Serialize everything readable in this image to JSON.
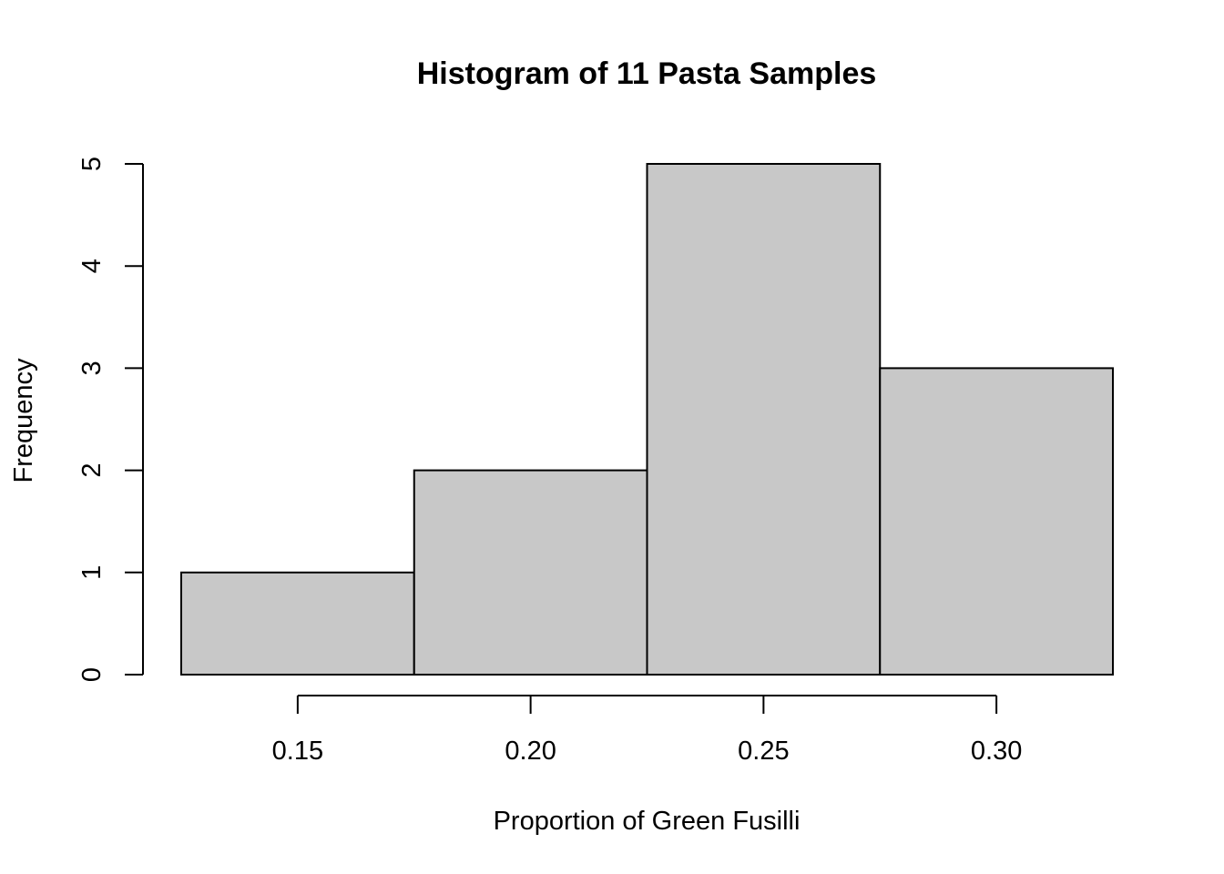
{
  "chart_data": {
    "type": "bar",
    "title": "Histogram of 11 Pasta Samples",
    "xlabel": "Proportion of Green Fusilli",
    "ylabel": "Frequency",
    "bins": [
      {
        "from": 0.125,
        "to": 0.175,
        "count": 1
      },
      {
        "from": 0.175,
        "to": 0.225,
        "count": 2
      },
      {
        "from": 0.225,
        "to": 0.275,
        "count": 5
      },
      {
        "from": 0.275,
        "to": 0.325,
        "count": 3
      }
    ],
    "x_ticks": [
      "0.15",
      "0.20",
      "0.25",
      "0.30"
    ],
    "y_ticks": [
      "0",
      "1",
      "2",
      "3",
      "4",
      "5"
    ],
    "xlim": [
      0.125,
      0.325
    ],
    "ylim": [
      0,
      5
    ],
    "grid": false,
    "legend": "none",
    "bar_color": "#c8c8c8"
  }
}
